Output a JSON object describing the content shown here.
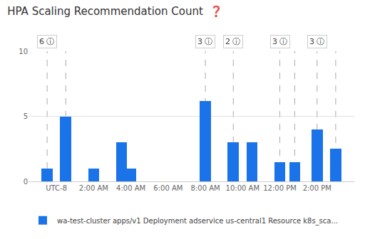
{
  "chart_data": {
    "type": "bar",
    "title": "HPA Scaling Recommendation Count  ❓",
    "x": [
      -0.5,
      0.5,
      2.0,
      3.5,
      4.0,
      8.0,
      9.5,
      10.5,
      12.0,
      12.8,
      14.0,
      15.0
    ],
    "series": [
      {
        "name": "wa-test-cluster apps/v1 Deployment adservice us-central1 Resource k8s_sca...",
        "color": "#1a73e8",
        "values": [
          1.0,
          5.0,
          1.0,
          3.0,
          1.0,
          6.2,
          3.0,
          3.0,
          1.5,
          1.5,
          4.0,
          2.5
        ]
      }
    ],
    "xlim": [
      -1.5,
      16.0
    ],
    "xticks": [
      {
        "value": 0,
        "label": "UTC-8"
      },
      {
        "value": 2,
        "label": "2:00 AM"
      },
      {
        "value": 4,
        "label": "4:00 AM"
      },
      {
        "value": 6,
        "label": "6:00 AM"
      },
      {
        "value": 8,
        "label": "8:00 AM"
      },
      {
        "value": 10,
        "label": "10:00 AM"
      },
      {
        "value": 12,
        "label": "12:00 PM"
      },
      {
        "value": 14,
        "label": "2:00 PM"
      }
    ],
    "ylim": [
      0,
      10
    ],
    "yticks": [
      0,
      5,
      10
    ],
    "grid": true,
    "legend": "lower left",
    "vlines": [
      -0.5,
      0.5,
      8.0,
      9.5,
      12.0,
      12.8,
      14.0,
      15.0
    ],
    "annotations": [
      {
        "x": -0.5,
        "text": "6 ⓘ"
      },
      {
        "x": 8.0,
        "text": "3 ⓘ"
      },
      {
        "x": 9.5,
        "text": "2 ⓘ"
      },
      {
        "x": 12.0,
        "text": "3 ⓘ"
      },
      {
        "x": 14.0,
        "text": "3 ⓘ"
      }
    ]
  }
}
